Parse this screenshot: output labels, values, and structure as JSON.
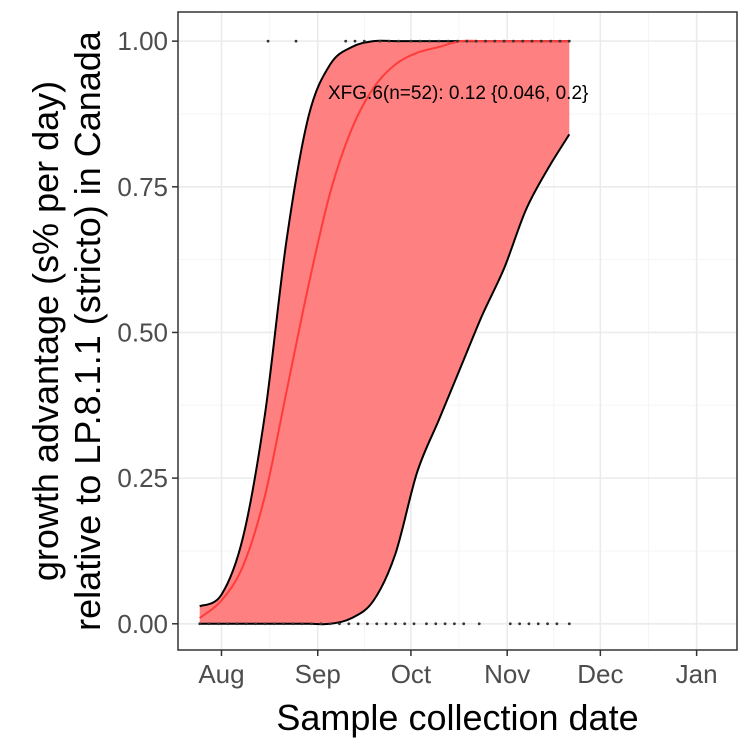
{
  "chart_data": {
    "type": "line",
    "xlabel": "Sample collection date",
    "ylabel_line1": "growth advantage (s% per day)",
    "ylabel_line2": "relative to LP.8.1.1 (stricto) in Canada",
    "x_tick_labels": [
      "Aug",
      "Sep",
      "Oct",
      "Nov",
      "Dec",
      "Jan"
    ],
    "x_ticks": [
      "2025-08-01",
      "2025-09-01",
      "2025-10-01",
      "2025-11-01",
      "2025-12-01",
      "2026-01-01"
    ],
    "xlim": [
      "2025-07-18",
      "2026-01-14"
    ],
    "y_tick_labels": [
      "0.00",
      "0.25",
      "0.50",
      "0.75",
      "1.00"
    ],
    "y_ticks": [
      0,
      0.25,
      0.5,
      0.75,
      1.0
    ],
    "ylim": [
      -0.045,
      1.05
    ],
    "grid": true,
    "colors": {
      "fit_line": "#ff3b3b",
      "ribbon_fill": "#ff8080",
      "ribbon_edge": "#000000",
      "points": "#333333",
      "grid_major": "#ebebeb",
      "grid_minor": "#f5f5f5",
      "panel_border": "#333333"
    },
    "annotation": "XFG.6(n=52): 0.12 {0.046, 0.2}",
    "series": [
      {
        "name": "XFG.6",
        "role": "fit",
        "x": [
          "2025-07-25",
          "2025-08-01",
          "2025-08-08",
          "2025-08-15",
          "2025-08-22",
          "2025-08-29",
          "2025-09-05",
          "2025-09-12",
          "2025-09-19",
          "2025-09-26",
          "2025-10-03",
          "2025-10-10",
          "2025-10-17",
          "2025-10-24",
          "2025-10-31",
          "2025-11-07",
          "2025-11-14",
          "2025-11-21"
        ],
        "y": [
          0.01,
          0.04,
          0.1,
          0.22,
          0.4,
          0.58,
          0.74,
          0.85,
          0.92,
          0.96,
          0.98,
          0.99,
          1.0,
          1.0,
          1.0,
          1.0,
          1.0,
          1.0
        ]
      },
      {
        "name": "XFG.6",
        "role": "ci_upper",
        "x": [
          "2025-07-25",
          "2025-08-01",
          "2025-08-08",
          "2025-08-15",
          "2025-08-22",
          "2025-08-29",
          "2025-09-05",
          "2025-09-12",
          "2025-09-19",
          "2025-09-26",
          "2025-10-03",
          "2025-10-10",
          "2025-10-17",
          "2025-10-24",
          "2025-10-31",
          "2025-11-07",
          "2025-11-14",
          "2025-11-21"
        ],
        "y": [
          0.03,
          0.05,
          0.15,
          0.36,
          0.66,
          0.87,
          0.96,
          0.99,
          1.0,
          1.0,
          1.0,
          1.0,
          1.0,
          1.0,
          1.0,
          1.0,
          1.0,
          1.0
        ]
      },
      {
        "name": "XFG.6",
        "role": "ci_lower",
        "x": [
          "2025-07-25",
          "2025-08-01",
          "2025-08-08",
          "2025-08-15",
          "2025-08-22",
          "2025-08-29",
          "2025-09-05",
          "2025-09-12",
          "2025-09-19",
          "2025-09-26",
          "2025-10-03",
          "2025-10-10",
          "2025-10-17",
          "2025-10-24",
          "2025-10-31",
          "2025-11-07",
          "2025-11-14",
          "2025-11-21"
        ],
        "y": [
          0.0,
          0.0,
          0.0,
          0.0,
          0.0,
          0.0,
          0.0,
          0.01,
          0.04,
          0.12,
          0.26,
          0.35,
          0.44,
          0.53,
          0.61,
          0.71,
          0.78,
          0.84
        ]
      },
      {
        "name": "XFG.6",
        "role": "observations",
        "points": [
          [
            "2025-08-16",
            1
          ],
          [
            "2025-08-25",
            1
          ],
          [
            "2025-09-10",
            1
          ],
          [
            "2025-09-13",
            1
          ],
          [
            "2025-09-16",
            1
          ],
          [
            "2025-09-21",
            1
          ],
          [
            "2025-09-24",
            1
          ],
          [
            "2025-09-27",
            1
          ],
          [
            "2025-10-01",
            1
          ],
          [
            "2025-10-04",
            1
          ],
          [
            "2025-10-07",
            1
          ],
          [
            "2025-10-10",
            1
          ],
          [
            "2025-10-13",
            1
          ],
          [
            "2025-10-16",
            1
          ],
          [
            "2025-10-19",
            1
          ],
          [
            "2025-10-22",
            1
          ],
          [
            "2025-10-25",
            1
          ],
          [
            "2025-10-28",
            1
          ],
          [
            "2025-10-31",
            1
          ],
          [
            "2025-11-03",
            1
          ],
          [
            "2025-11-06",
            1
          ],
          [
            "2025-11-09",
            1
          ],
          [
            "2025-11-12",
            1
          ],
          [
            "2025-11-15",
            1
          ],
          [
            "2025-11-18",
            1
          ],
          [
            "2025-11-21",
            1
          ],
          [
            "2025-07-25",
            0
          ],
          [
            "2025-07-28",
            0
          ],
          [
            "2025-07-31",
            0
          ],
          [
            "2025-08-03",
            0
          ],
          [
            "2025-08-06",
            0
          ],
          [
            "2025-08-09",
            0
          ],
          [
            "2025-08-12",
            0
          ],
          [
            "2025-08-15",
            0
          ],
          [
            "2025-08-18",
            0
          ],
          [
            "2025-08-21",
            0
          ],
          [
            "2025-08-24",
            0
          ],
          [
            "2025-08-27",
            0
          ],
          [
            "2025-08-30",
            0
          ],
          [
            "2025-09-02",
            0
          ],
          [
            "2025-09-05",
            0
          ],
          [
            "2025-09-08",
            0
          ],
          [
            "2025-09-11",
            0
          ],
          [
            "2025-09-14",
            0
          ],
          [
            "2025-09-17",
            0
          ],
          [
            "2025-09-20",
            0
          ],
          [
            "2025-09-23",
            0
          ],
          [
            "2025-09-26",
            0
          ],
          [
            "2025-09-29",
            0
          ],
          [
            "2025-10-02",
            0
          ],
          [
            "2025-10-06",
            0
          ],
          [
            "2025-10-09",
            0
          ],
          [
            "2025-10-12",
            0
          ],
          [
            "2025-10-15",
            0
          ],
          [
            "2025-10-18",
            0
          ],
          [
            "2025-10-23",
            0
          ],
          [
            "2025-11-02",
            0
          ],
          [
            "2025-11-05",
            0
          ],
          [
            "2025-11-08",
            0
          ],
          [
            "2025-11-11",
            0
          ],
          [
            "2025-11-14",
            0
          ],
          [
            "2025-11-17",
            0
          ],
          [
            "2025-11-21",
            0
          ]
        ]
      }
    ]
  }
}
